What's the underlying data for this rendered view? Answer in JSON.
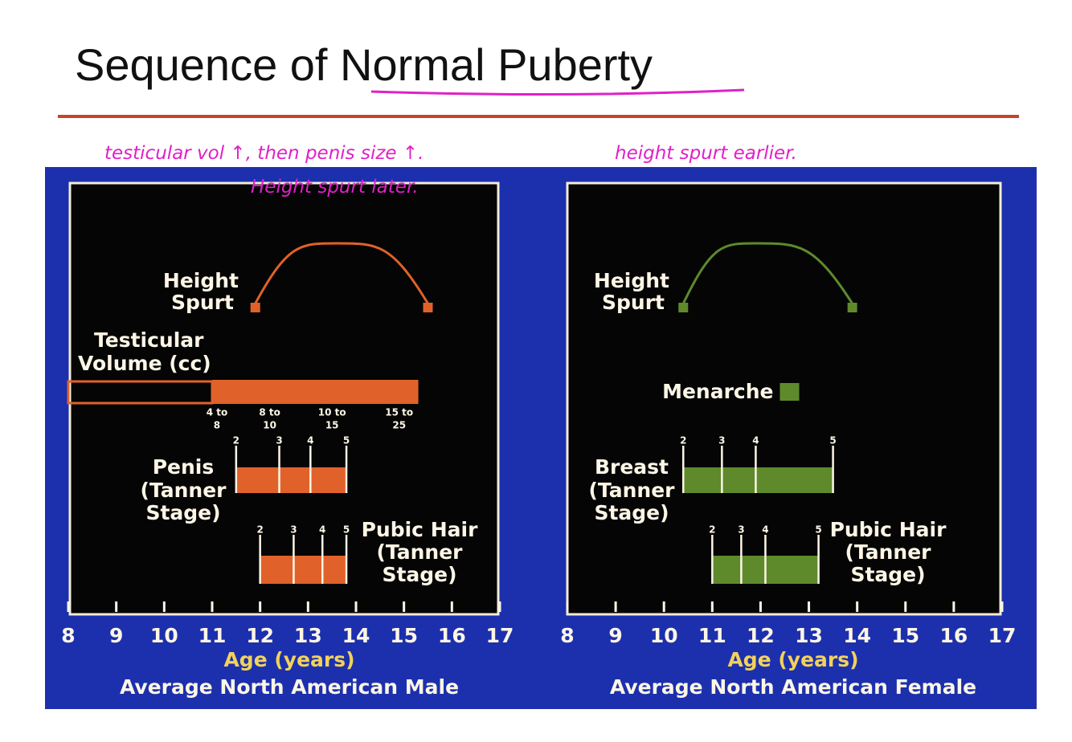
{
  "slide": {
    "title": "Sequence of Normal Puberty",
    "annotations": [
      "testicular vol ↑, then penis size ↑.",
      "Height spurt later.",
      "height spurt earlier."
    ]
  },
  "chart_data": [
    {
      "type": "timeline",
      "title": "Average North American Male",
      "x_label": "Age (years)",
      "xlim": [
        8,
        17
      ],
      "xticks": [
        8,
        9,
        10,
        11,
        12,
        13,
        14,
        15,
        16,
        17
      ],
      "color": "#e0622a",
      "height_spurt": {
        "label": [
          "Height",
          "Spurt"
        ],
        "start": 11.9,
        "peak": 13.6,
        "end": 15.5
      },
      "testicular_volume": {
        "label": [
          "Testicular",
          "Volume (cc)"
        ],
        "start": 8,
        "fill_start": 11,
        "end": 15.3,
        "ranges": [
          {
            "label": [
              "4 to",
              "8"
            ],
            "x": 11.1
          },
          {
            "label": [
              "8 to",
              "10"
            ],
            "x": 12.2
          },
          {
            "label": [
              "10 to",
              "15"
            ],
            "x": 13.5
          },
          {
            "label": [
              "15 to",
              "25"
            ],
            "x": 14.9
          }
        ]
      },
      "stages": [
        {
          "label": [
            "Penis",
            "(Tanner",
            "Stage)"
          ],
          "ticks": [
            {
              "stage": 2,
              "x": 11.5
            },
            {
              "stage": 3,
              "x": 12.4
            },
            {
              "stage": 4,
              "x": 13.05
            },
            {
              "stage": 5,
              "x": 13.8
            }
          ]
        },
        {
          "label": [
            "Pubic Hair",
            "(Tanner",
            "Stage)"
          ],
          "ticks": [
            {
              "stage": 2,
              "x": 12
            },
            {
              "stage": 3,
              "x": 12.7
            },
            {
              "stage": 4,
              "x": 13.3
            },
            {
              "stage": 5,
              "x": 13.8
            }
          ]
        }
      ]
    },
    {
      "type": "timeline",
      "title": "Average North American Female",
      "x_label": "Age (years)",
      "xlim": [
        8,
        17
      ],
      "xticks": [
        8,
        9,
        10,
        11,
        12,
        13,
        14,
        15,
        16,
        17
      ],
      "color": "#5e8a2c",
      "height_spurt": {
        "label": [
          "Height",
          "Spurt"
        ],
        "start": 10.4,
        "peak": 11.9,
        "end": 13.9
      },
      "menarche": {
        "label": "Menarche",
        "start": 12.4,
        "end": 12.8
      },
      "stages": [
        {
          "label": [
            "Breast",
            "(Tanner",
            "Stage)"
          ],
          "ticks": [
            {
              "stage": 2,
              "x": 10.4
            },
            {
              "stage": 3,
              "x": 11.2
            },
            {
              "stage": 4,
              "x": 11.9
            },
            {
              "stage": 5,
              "x": 13.5
            }
          ]
        },
        {
          "label": [
            "Pubic Hair",
            "(Tanner",
            "Stage)"
          ],
          "ticks": [
            {
              "stage": 2,
              "x": 11
            },
            {
              "stage": 3,
              "x": 11.6
            },
            {
              "stage": 4,
              "x": 12.1
            },
            {
              "stage": 5,
              "x": 13.2
            }
          ]
        }
      ]
    }
  ]
}
